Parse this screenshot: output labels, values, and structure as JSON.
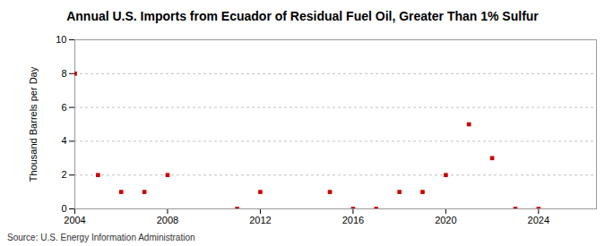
{
  "chart_data": {
    "type": "scatter",
    "title": "Annual U.S. Imports from Ecuador of Residual Fuel Oil, Greater Than 1% Sulfur",
    "y_label": "Thousand Barrels per Day",
    "source": "Source: U.S. Energy Information Administration",
    "x": [
      2004,
      2005,
      2006,
      2007,
      2008,
      2011,
      2012,
      2015,
      2016,
      2017,
      2018,
      2019,
      2020,
      2021,
      2022,
      2023,
      2024
    ],
    "values": [
      8,
      2,
      1,
      1,
      2,
      0,
      1,
      1,
      0,
      0,
      1,
      1,
      2,
      5,
      3,
      0,
      0
    ],
    "color": "#cc0000",
    "marker": "square",
    "xlim": [
      2004,
      2026.5
    ],
    "xticks": [
      2004,
      2008,
      2012,
      2016,
      2020,
      2024
    ],
    "ylim": [
      0,
      10
    ],
    "yticks": [
      0,
      2,
      4,
      6,
      8,
      10
    ],
    "grid": true
  }
}
